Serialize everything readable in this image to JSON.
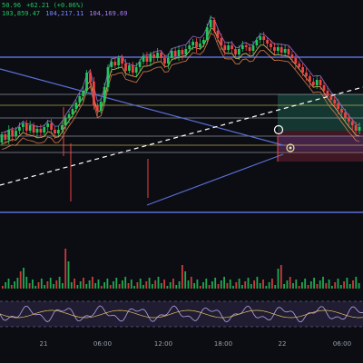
{
  "info": {
    "line1": [
      {
        "text": "50.96",
        "color": "#22c55e"
      },
      {
        "text": "+62.21 (+0.06%)",
        "color": "#22c55e"
      }
    ],
    "line2": [
      {
        "text": "103,859.47",
        "color": "#22c55e"
      },
      {
        "text": "104,217.11",
        "color": "#7c84ff"
      },
      {
        "text": "104,169.69",
        "color": "#b07cff"
      }
    ]
  },
  "colors": {
    "background": "#0b0d12",
    "up": "#22c55e",
    "down": "#ef4444",
    "level_line": "#c9c9d6",
    "support_resistance": "#5b6fd6",
    "trendline": "#ffffff",
    "fib_line": "#e6c35c",
    "ma_fast": "#e6c35c",
    "ma_mid": "#d97a4a",
    "ma_slow": "#9a6fd6",
    "zone_green": "#1e5c4a",
    "zone_red": "#6b2333",
    "zone_purple": "#4a2e6b",
    "rsi_band": "#3a2e5a"
  },
  "chart_data": {
    "type": "candlestick",
    "price_candles": [
      {
        "o": 83,
        "c": 92
      },
      {
        "o": 92,
        "c": 86
      },
      {
        "o": 86,
        "c": 97
      },
      {
        "o": 97,
        "c": 90
      },
      {
        "o": 90,
        "c": 96
      },
      {
        "o": 96,
        "c": 100
      },
      {
        "o": 100,
        "c": 104
      },
      {
        "o": 104,
        "c": 96
      },
      {
        "o": 96,
        "c": 102
      },
      {
        "o": 102,
        "c": 94
      },
      {
        "o": 94,
        "c": 98
      },
      {
        "o": 98,
        "c": 94
      },
      {
        "o": 94,
        "c": 100
      },
      {
        "o": 100,
        "c": 104
      },
      {
        "o": 104,
        "c": 97
      },
      {
        "o": 97,
        "c": 93
      },
      {
        "o": 93,
        "c": 97
      },
      {
        "o": 97,
        "c": 102
      },
      {
        "o": 102,
        "c": 110
      },
      {
        "o": 110,
        "c": 114
      },
      {
        "o": 114,
        "c": 120
      },
      {
        "o": 120,
        "c": 127
      },
      {
        "o": 127,
        "c": 134
      },
      {
        "o": 134,
        "c": 140
      },
      {
        "o": 140,
        "c": 160
      },
      {
        "o": 160,
        "c": 150
      },
      {
        "o": 150,
        "c": 124
      },
      {
        "o": 124,
        "c": 118
      },
      {
        "o": 118,
        "c": 128
      },
      {
        "o": 128,
        "c": 144
      },
      {
        "o": 144,
        "c": 166
      },
      {
        "o": 166,
        "c": 172
      },
      {
        "o": 172,
        "c": 168
      },
      {
        "o": 168,
        "c": 176
      },
      {
        "o": 176,
        "c": 170
      },
      {
        "o": 170,
        "c": 162
      },
      {
        "o": 162,
        "c": 168
      },
      {
        "o": 168,
        "c": 160
      },
      {
        "o": 160,
        "c": 166
      },
      {
        "o": 166,
        "c": 172
      },
      {
        "o": 172,
        "c": 178
      },
      {
        "o": 178,
        "c": 172
      },
      {
        "o": 172,
        "c": 180
      },
      {
        "o": 180,
        "c": 176
      },
      {
        "o": 176,
        "c": 182
      },
      {
        "o": 182,
        "c": 176
      },
      {
        "o": 176,
        "c": 170
      },
      {
        "o": 170,
        "c": 176
      },
      {
        "o": 176,
        "c": 184
      },
      {
        "o": 184,
        "c": 178
      },
      {
        "o": 178,
        "c": 185
      },
      {
        "o": 185,
        "c": 180
      },
      {
        "o": 180,
        "c": 186
      },
      {
        "o": 186,
        "c": 190
      },
      {
        "o": 190,
        "c": 194
      },
      {
        "o": 194,
        "c": 188
      },
      {
        "o": 188,
        "c": 192
      },
      {
        "o": 192,
        "c": 196
      },
      {
        "o": 196,
        "c": 210
      },
      {
        "o": 210,
        "c": 218
      },
      {
        "o": 218,
        "c": 206
      },
      {
        "o": 206,
        "c": 198
      },
      {
        "o": 198,
        "c": 190
      },
      {
        "o": 190,
        "c": 185
      },
      {
        "o": 185,
        "c": 190
      },
      {
        "o": 190,
        "c": 186
      },
      {
        "o": 186,
        "c": 180
      },
      {
        "o": 180,
        "c": 186
      },
      {
        "o": 186,
        "c": 190
      },
      {
        "o": 190,
        "c": 188
      },
      {
        "o": 188,
        "c": 184
      },
      {
        "o": 184,
        "c": 190
      },
      {
        "o": 190,
        "c": 196
      },
      {
        "o": 196,
        "c": 200
      },
      {
        "o": 200,
        "c": 196
      },
      {
        "o": 196,
        "c": 192
      },
      {
        "o": 192,
        "c": 188
      },
      {
        "o": 188,
        "c": 184
      },
      {
        "o": 184,
        "c": 188
      },
      {
        "o": 188,
        "c": 182
      },
      {
        "o": 182,
        "c": 186
      },
      {
        "o": 186,
        "c": 180
      },
      {
        "o": 180,
        "c": 176
      },
      {
        "o": 176,
        "c": 170
      },
      {
        "o": 170,
        "c": 166
      },
      {
        "o": 166,
        "c": 160
      },
      {
        "o": 160,
        "c": 156
      },
      {
        "o": 156,
        "c": 150
      },
      {
        "o": 150,
        "c": 146
      },
      {
        "o": 146,
        "c": 152
      },
      {
        "o": 152,
        "c": 146
      },
      {
        "o": 146,
        "c": 140
      },
      {
        "o": 140,
        "c": 134
      },
      {
        "o": 134,
        "c": 130
      },
      {
        "o": 130,
        "c": 126
      },
      {
        "o": 126,
        "c": 120
      },
      {
        "o": 120,
        "c": 116
      },
      {
        "o": 116,
        "c": 110
      },
      {
        "o": 110,
        "c": 106
      },
      {
        "o": 106,
        "c": 102
      },
      {
        "o": 102,
        "c": 96
      },
      {
        "o": 96,
        "c": 100
      }
    ],
    "volume": [
      "sample data set, relative bar heights"
    ],
    "price_axis_range": [
      40,
      240
    ],
    "x_ticks": [
      "21",
      "06:00",
      "12:00",
      "18:00",
      "22",
      "06:00"
    ]
  }
}
